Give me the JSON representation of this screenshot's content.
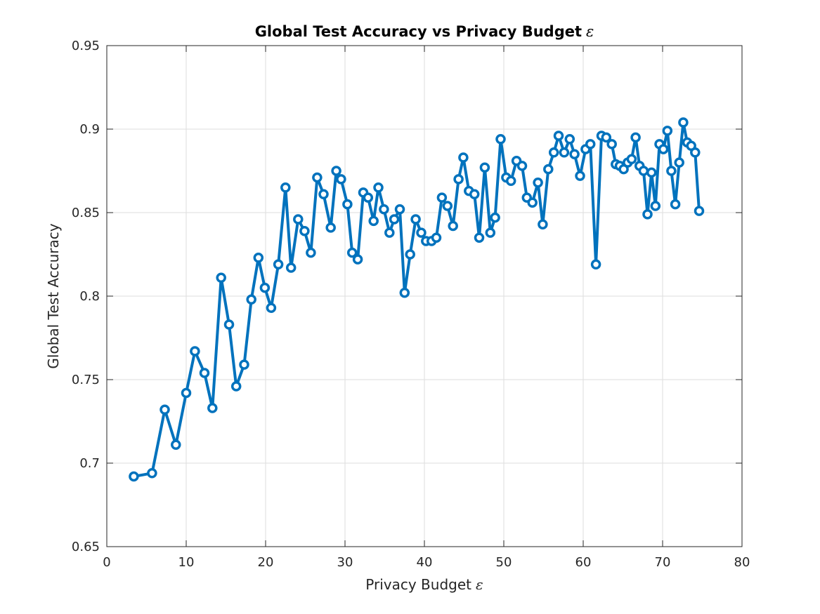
{
  "chart_data": {
    "type": "line",
    "title": "Global Test Accuracy vs Privacy Budget",
    "title_symbol": "ε",
    "xlabel": "Privacy Budget",
    "xlabel_symbol": "ε",
    "ylabel": "Global Test Accuracy",
    "xlim": [
      0,
      80
    ],
    "ylim": [
      0.65,
      0.95
    ],
    "xticks": [
      "0",
      "10",
      "20",
      "30",
      "40",
      "50",
      "60",
      "70",
      "80"
    ],
    "yticks": [
      "0.65",
      "0.7",
      "0.75",
      "0.8",
      "0.85",
      "0.9",
      "0.95"
    ],
    "grid": true,
    "line_color": "#0072BD",
    "marker": "circle",
    "x": [
      3.4,
      5.7,
      7.3,
      8.7,
      10.0,
      11.1,
      12.3,
      13.3,
      14.4,
      15.4,
      16.3,
      17.3,
      18.2,
      19.1,
      19.9,
      20.7,
      21.6,
      22.5,
      23.2,
      24.1,
      24.9,
      25.7,
      26.5,
      27.3,
      28.2,
      28.9,
      29.5,
      30.3,
      30.9,
      31.6,
      32.3,
      32.9,
      33.6,
      34.2,
      34.9,
      35.6,
      36.2,
      36.9,
      37.5,
      38.2,
      38.9,
      39.6,
      40.2,
      40.9,
      41.5,
      42.2,
      42.9,
      43.6,
      44.3,
      44.9,
      45.6,
      46.3,
      46.9,
      47.6,
      48.3,
      48.9,
      49.6,
      50.3,
      50.9,
      51.6,
      52.3,
      52.9,
      53.6,
      54.3,
      54.9,
      55.6,
      56.3,
      56.9,
      57.6,
      58.3,
      58.9,
      59.6,
      60.3,
      60.9,
      61.6,
      62.3,
      62.9,
      63.6,
      64.1,
      64.6,
      65.1,
      65.6,
      66.1,
      66.6,
      67.1,
      67.6,
      68.1,
      68.6,
      69.1,
      69.6,
      70.1,
      70.6,
      71.1,
      71.6,
      72.1,
      72.6,
      73.1,
      73.6,
      74.1,
      74.6
    ],
    "series": [
      {
        "values": [
          0.692,
          0.694,
          0.732,
          0.711,
          0.742,
          0.767,
          0.754,
          0.733,
          0.811,
          0.783,
          0.746,
          0.759,
          0.798,
          0.823,
          0.805,
          0.793,
          0.819,
          0.865,
          0.817,
          0.846,
          0.839,
          0.826,
          0.871,
          0.861,
          0.841,
          0.875,
          0.87,
          0.855,
          0.826,
          0.822,
          0.862,
          0.859,
          0.845,
          0.865,
          0.852,
          0.838,
          0.846,
          0.852,
          0.802,
          0.825,
          0.846,
          0.838,
          0.833,
          0.833,
          0.835,
          0.859,
          0.854,
          0.842,
          0.87,
          0.883,
          0.863,
          0.861,
          0.835,
          0.877,
          0.838,
          0.847,
          0.894,
          0.871,
          0.869,
          0.881,
          0.878,
          0.859,
          0.856,
          0.868,
          0.843,
          0.876,
          0.886,
          0.896,
          0.886,
          0.894,
          0.885,
          0.872,
          0.888,
          0.891,
          0.819,
          0.896,
          0.895,
          0.891,
          0.879,
          0.878,
          0.876,
          0.88,
          0.882,
          0.895,
          0.878,
          0.875,
          0.849,
          0.874,
          0.854,
          0.891,
          0.888,
          0.899,
          0.875,
          0.855,
          0.88,
          0.904,
          0.892,
          0.89,
          0.886,
          0.851
        ]
      }
    ]
  }
}
